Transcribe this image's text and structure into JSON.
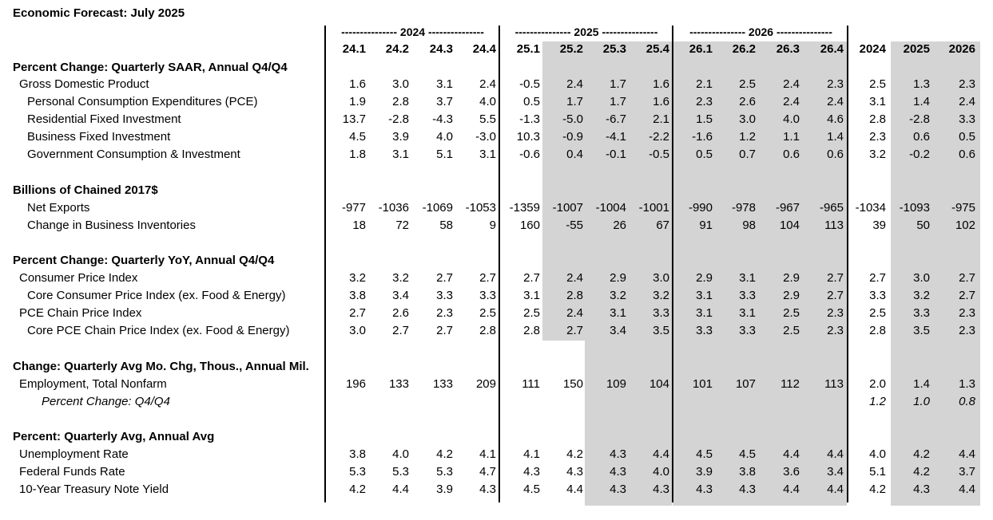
{
  "title": "Economic Forecast: July 2025",
  "year_groups": [
    {
      "label": "--------------- 2024 ---------------"
    },
    {
      "label": "--------------- 2025 ---------------"
    },
    {
      "label": "--------------- 2026 ---------------"
    }
  ],
  "column_headers": [
    "24.1",
    "24.2",
    "24.3",
    "24.4",
    "25.1",
    "25.2",
    "25.3",
    "25.4",
    "26.1",
    "26.2",
    "26.3",
    "26.4",
    "2024",
    "2025",
    "2026"
  ],
  "rows": [
    {
      "type": "section",
      "label": "Percent Change: Quarterly SAAR, Annual Q4/Q4"
    },
    {
      "type": "data",
      "indent": 1,
      "label": "Gross Domestic Product",
      "values": [
        "1.6",
        "3.0",
        "3.1",
        "2.4",
        "-0.5",
        "2.4",
        "1.7",
        "1.6",
        "2.1",
        "2.5",
        "2.4",
        "2.3",
        "2.5",
        "1.3",
        "2.3"
      ]
    },
    {
      "type": "data",
      "indent": 2,
      "label": "Personal Consumption Expenditures (PCE)",
      "values": [
        "1.9",
        "2.8",
        "3.7",
        "4.0",
        "0.5",
        "1.7",
        "1.7",
        "1.6",
        "2.3",
        "2.6",
        "2.4",
        "2.4",
        "3.1",
        "1.4",
        "2.4"
      ]
    },
    {
      "type": "data",
      "indent": 2,
      "label": "Residential Fixed Investment",
      "values": [
        "13.7",
        "-2.8",
        "-4.3",
        "5.5",
        "-1.3",
        "-5.0",
        "-6.7",
        "2.1",
        "1.5",
        "3.0",
        "4.0",
        "4.6",
        "2.8",
        "-2.8",
        "3.3"
      ]
    },
    {
      "type": "data",
      "indent": 2,
      "label": "Business Fixed Investment",
      "values": [
        "4.5",
        "3.9",
        "4.0",
        "-3.0",
        "10.3",
        "-0.9",
        "-4.1",
        "-2.2",
        "-1.6",
        "1.2",
        "1.1",
        "1.4",
        "2.3",
        "0.6",
        "0.5"
      ]
    },
    {
      "type": "data",
      "indent": 2,
      "label": "Government Consumption & Investment",
      "values": [
        "1.8",
        "3.1",
        "5.1",
        "3.1",
        "-0.6",
        "0.4",
        "-0.1",
        "-0.5",
        "0.5",
        "0.7",
        "0.6",
        "0.6",
        "3.2",
        "-0.2",
        "0.6"
      ]
    },
    {
      "type": "blank"
    },
    {
      "type": "section",
      "label": "Billions of Chained 2017$"
    },
    {
      "type": "data",
      "indent": 2,
      "label": "Net Exports",
      "values": [
        "-977",
        "-1036",
        "-1069",
        "-1053",
        "-1359",
        "-1007",
        "-1004",
        "-1001",
        "-990",
        "-978",
        "-967",
        "-965",
        "-1034",
        "-1093",
        "-975"
      ]
    },
    {
      "type": "data",
      "indent": 2,
      "label": "Change in Business Inventories",
      "values": [
        "18",
        "72",
        "58",
        "9",
        "160",
        "-55",
        "26",
        "67",
        "91",
        "98",
        "104",
        "113",
        "39",
        "50",
        "102"
      ]
    },
    {
      "type": "blank"
    },
    {
      "type": "section",
      "label": "Percent Change: Quarterly YoY, Annual Q4/Q4"
    },
    {
      "type": "data",
      "indent": 1,
      "label": "Consumer Price Index",
      "values": [
        "3.2",
        "3.2",
        "2.7",
        "2.7",
        "2.7",
        "2.4",
        "2.9",
        "3.0",
        "2.9",
        "3.1",
        "2.9",
        "2.7",
        "2.7",
        "3.0",
        "2.7"
      ]
    },
    {
      "type": "data",
      "indent": 2,
      "label": "Core Consumer Price Index (ex. Food & Energy)",
      "values": [
        "3.8",
        "3.4",
        "3.3",
        "3.3",
        "3.1",
        "2.8",
        "3.2",
        "3.2",
        "3.1",
        "3.3",
        "2.9",
        "2.7",
        "3.3",
        "3.2",
        "2.7"
      ]
    },
    {
      "type": "data",
      "indent": 1,
      "label": "PCE Chain Price Index",
      "values": [
        "2.7",
        "2.6",
        "2.3",
        "2.5",
        "2.5",
        "2.4",
        "3.1",
        "3.3",
        "3.1",
        "3.1",
        "2.5",
        "2.3",
        "2.5",
        "3.3",
        "2.3"
      ]
    },
    {
      "type": "data",
      "indent": 2,
      "label": "Core PCE Chain Price Index (ex. Food & Energy)",
      "values": [
        "3.0",
        "2.7",
        "2.7",
        "2.8",
        "2.8",
        "2.7",
        "3.4",
        "3.5",
        "3.3",
        "3.3",
        "2.5",
        "2.3",
        "2.8",
        "3.5",
        "2.3"
      ]
    },
    {
      "type": "blank"
    },
    {
      "type": "section",
      "label": "Change: Quarterly Avg Mo. Chg, Thous., Annual Mil."
    },
    {
      "type": "data",
      "indent": 1,
      "label": "Employment, Total Nonfarm",
      "values": [
        "196",
        "133",
        "133",
        "209",
        "111",
        "150",
        "109",
        "104",
        "101",
        "107",
        "112",
        "113",
        "2.0",
        "1.4",
        "1.3"
      ]
    },
    {
      "type": "italic",
      "indent": 3,
      "label": "Percent Change: Q4/Q4",
      "values": [
        "",
        "",
        "",
        "",
        "",
        "",
        "",
        "",
        "",
        "",
        "",
        "",
        "1.2",
        "1.0",
        "0.8"
      ]
    },
    {
      "type": "blank"
    },
    {
      "type": "section",
      "label": "Percent: Quarterly Avg, Annual Avg"
    },
    {
      "type": "data",
      "indent": 1,
      "label": "Unemployment Rate",
      "values": [
        "3.8",
        "4.0",
        "4.2",
        "4.1",
        "4.1",
        "4.2",
        "4.3",
        "4.4",
        "4.5",
        "4.5",
        "4.4",
        "4.4",
        "4.0",
        "4.2",
        "4.4"
      ]
    },
    {
      "type": "data",
      "indent": 1,
      "label": "Federal Funds Rate",
      "values": [
        "5.3",
        "5.3",
        "5.3",
        "4.7",
        "4.3",
        "4.3",
        "4.3",
        "4.0",
        "3.9",
        "3.8",
        "3.6",
        "3.4",
        "5.1",
        "4.2",
        "3.7"
      ]
    },
    {
      "type": "data",
      "indent": 1,
      "label": "10-Year Treasury Note Yield",
      "values": [
        "4.2",
        "4.4",
        "3.9",
        "4.3",
        "4.5",
        "4.4",
        "4.3",
        "4.3",
        "4.3",
        "4.3",
        "4.4",
        "4.4",
        "4.2",
        "4.3",
        "4.4"
      ]
    }
  ],
  "colors": {
    "forecast_shade": "#d4d4d4",
    "text": "#000000"
  }
}
